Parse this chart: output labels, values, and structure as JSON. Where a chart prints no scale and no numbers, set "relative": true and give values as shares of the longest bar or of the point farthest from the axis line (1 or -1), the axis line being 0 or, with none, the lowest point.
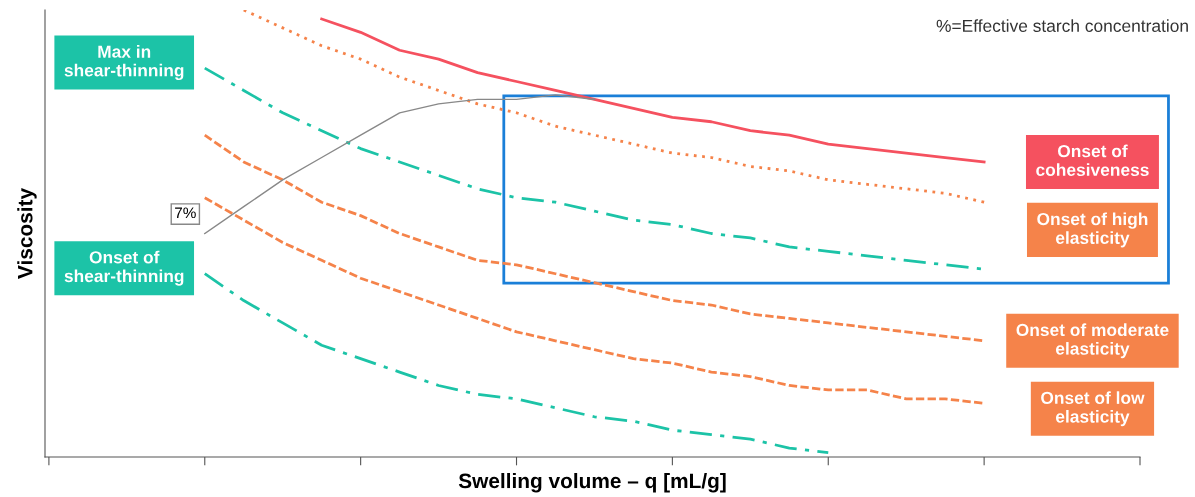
{
  "chart_data": {
    "type": "line",
    "relative": true,
    "xlabel": "Swelling volume – q [mL/g]",
    "ylabel": "Viscosity",
    "categories": [
      null,
      null,
      null,
      null,
      null,
      null,
      null,
      null,
      null,
      null,
      null,
      null,
      null,
      null,
      null,
      null,
      null,
      null,
      null,
      null,
      null,
      null,
      null,
      null,
      null,
      null,
      null,
      null,
      null
    ],
    "grid": false,
    "legend": false,
    "marker": "none",
    "series": [
      {
        "name": "Onset of\ncohesiveness",
        "color": "#f5515f",
        "line_style": "solid",
        "values": [
          null,
          null,
          null,
          null,
          null,
          null,
          null,
          0.98,
          0.95,
          0.91,
          0.89,
          0.86,
          0.84,
          0.82,
          0.8,
          0.78,
          0.76,
          0.75,
          0.73,
          0.72,
          0.7,
          0.69,
          0.68,
          0.67,
          0.66,
          null,
          null,
          null,
          null
        ]
      },
      {
        "name": "Onset of high\nelasticity",
        "color": "#f5834a",
        "line_style": "dotted",
        "values": [
          null,
          null,
          null,
          null,
          null,
          1.0,
          0.96,
          0.92,
          0.89,
          0.85,
          0.82,
          0.79,
          0.77,
          0.74,
          0.72,
          0.7,
          0.68,
          0.67,
          0.65,
          0.64,
          0.62,
          0.61,
          0.6,
          0.59,
          0.57,
          null,
          null,
          null,
          null
        ]
      },
      {
        "name": "Max in\nshear-thinning",
        "color": "#1cc3a7",
        "line_style": "dashdot",
        "values": [
          null,
          null,
          null,
          null,
          0.87,
          0.82,
          0.77,
          0.73,
          0.69,
          0.66,
          0.63,
          0.6,
          0.58,
          0.57,
          0.55,
          0.53,
          0.52,
          0.5,
          0.49,
          0.47,
          0.46,
          0.45,
          0.44,
          0.43,
          0.42,
          null,
          null,
          null,
          null
        ]
      },
      {
        "name": "Onset of moderate\nelasticity",
        "color": "#f5834a",
        "line_style": "dashed",
        "values": [
          null,
          null,
          null,
          null,
          0.72,
          0.66,
          0.62,
          0.57,
          0.54,
          0.5,
          0.47,
          0.44,
          0.43,
          0.41,
          0.39,
          0.37,
          0.35,
          0.34,
          0.32,
          0.31,
          0.3,
          0.29,
          0.28,
          0.27,
          0.26,
          null,
          null,
          null,
          null
        ]
      },
      {
        "name": "Onset of low\nelasticity",
        "color": "#f5834a",
        "line_style": "dashed",
        "values": [
          null,
          null,
          null,
          null,
          0.58,
          0.53,
          0.48,
          0.44,
          0.4,
          0.37,
          0.34,
          0.31,
          0.28,
          0.26,
          0.24,
          0.22,
          0.21,
          0.19,
          0.18,
          0.16,
          0.15,
          0.15,
          0.13,
          0.13,
          0.12,
          null,
          null,
          null,
          null
        ]
      },
      {
        "name": "Onset of\nshear-thinning",
        "color": "#1cc3a7",
        "line_style": "dashdot",
        "values": [
          null,
          null,
          null,
          null,
          0.41,
          0.35,
          0.3,
          0.25,
          0.22,
          0.19,
          0.16,
          0.14,
          0.13,
          0.11,
          0.09,
          0.08,
          0.06,
          0.05,
          0.04,
          0.02,
          0.01,
          null,
          null,
          null,
          null,
          null,
          null,
          null,
          null
        ]
      },
      {
        "name": "7%",
        "color": "#888888",
        "line_style": "solid",
        "values": [
          null,
          null,
          null,
          null,
          0.5,
          0.56,
          0.62,
          0.67,
          0.72,
          0.77,
          0.79,
          0.8,
          0.8,
          0.81,
          0.8,
          null,
          null,
          null,
          null,
          null,
          null,
          null,
          null,
          null,
          null,
          null,
          null,
          null,
          null
        ]
      }
    ],
    "annotations": [
      "%=Effective starch concentration"
    ]
  }
}
